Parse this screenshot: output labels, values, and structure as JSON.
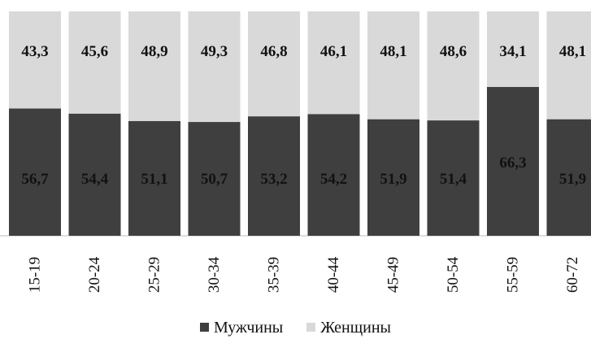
{
  "chart_data": {
    "type": "bar",
    "stacked": true,
    "categories": [
      "15-19",
      "20-24",
      "25-29",
      "30-34",
      "35-39",
      "40-44",
      "45-49",
      "50-54",
      "55-59",
      "60-72"
    ],
    "series": [
      {
        "name": "Мужчины",
        "values": [
          56.7,
          54.4,
          51.1,
          50.7,
          53.2,
          54.2,
          51.9,
          51.4,
          66.3,
          51.9
        ],
        "labels": [
          "56,7",
          "54,4",
          "51,1",
          "50,7",
          "53,2",
          "54,2",
          "51,9",
          "51,4",
          "66,3",
          "51,9"
        ],
        "color": "#3f3f3f"
      },
      {
        "name": "Женщины",
        "values": [
          43.3,
          45.6,
          48.9,
          49.3,
          46.8,
          46.1,
          48.1,
          48.6,
          34.1,
          48.1
        ],
        "labels": [
          "43,3",
          "45,6",
          "48,9",
          "49,3",
          "46,8",
          "46,1",
          "48,1",
          "48,6",
          "34,1",
          "48,1"
        ],
        "color": "#d9d9d9"
      }
    ],
    "ylim": [
      0,
      100
    ],
    "grid": false,
    "legend_position": "bottom",
    "title": "",
    "xlabel": "",
    "ylabel": ""
  }
}
